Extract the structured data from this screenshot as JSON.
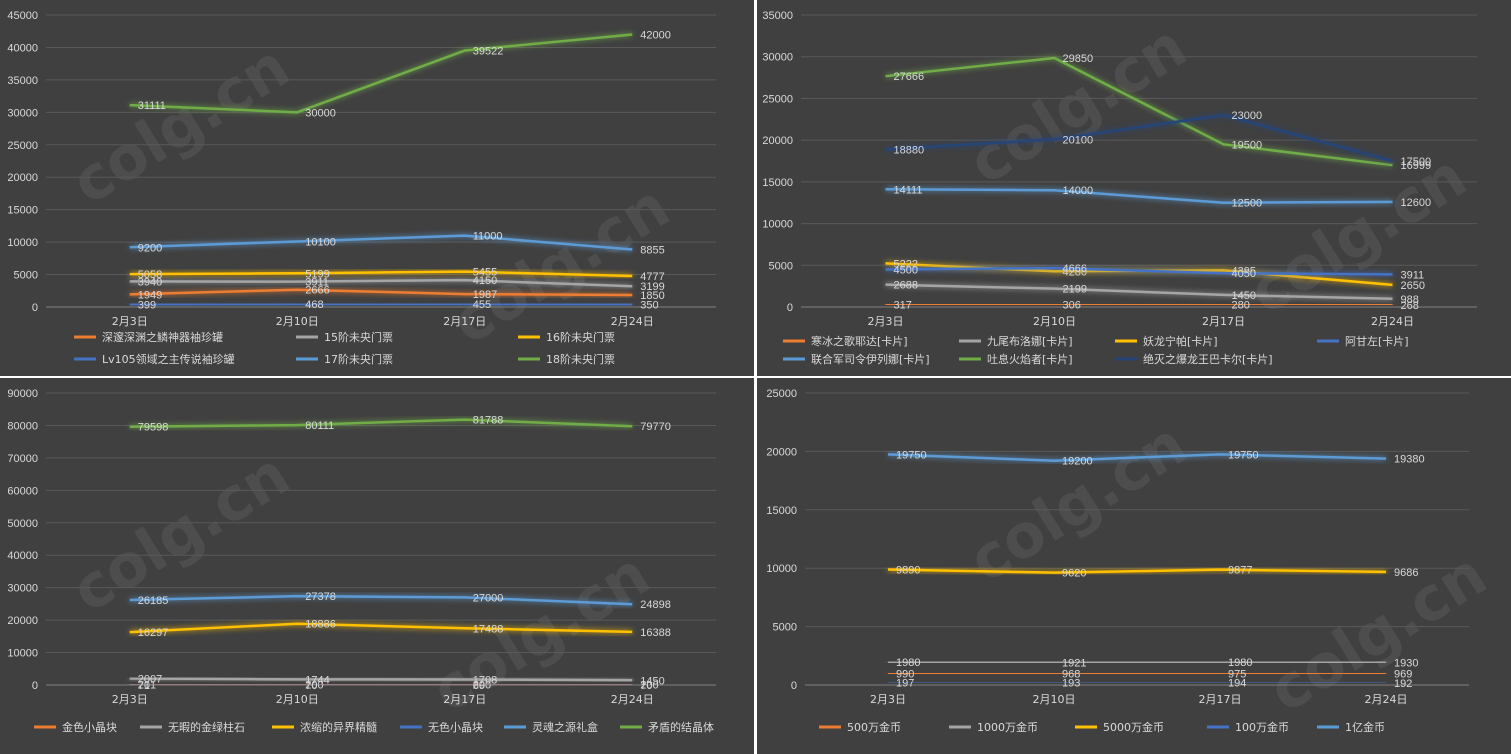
{
  "watermark_text": "colg.cn",
  "colors": {
    "orange": "#ED7D31",
    "gray": "#A5A5A5",
    "gold": "#FFC000",
    "blue": "#4472C4",
    "lightblue": "#5B9BD5",
    "green": "#70AD47",
    "navy": "#264478"
  },
  "chart_data": [
    {
      "type": "line",
      "categories": [
        "2月3日",
        "2月10日",
        "2月17日",
        "2月24日"
      ],
      "ylim": [
        0,
        45000
      ],
      "yticks": [
        0,
        5000,
        10000,
        15000,
        20000,
        25000,
        30000,
        35000,
        40000,
        45000
      ],
      "grid": true,
      "legend_position": "bottom",
      "series": [
        {
          "name": "深邃深渊之鳞神器袖珍罐",
          "color": "orange",
          "values": [
            1949,
            2666,
            1987,
            1850
          ]
        },
        {
          "name": "15阶未央门票",
          "color": "gray",
          "values": [
            3940,
            3911,
            4150,
            3199
          ]
        },
        {
          "name": "16阶未央门票",
          "color": "gold",
          "values": [
            5058,
            5199,
            5455,
            4777
          ]
        },
        {
          "name": "Lv105领域之主传说袖珍罐",
          "color": "blue",
          "values": [
            399,
            468,
            455,
            350
          ]
        },
        {
          "name": "17阶未央门票",
          "color": "lightblue",
          "values": [
            9200,
            10100,
            11000,
            8855
          ]
        },
        {
          "name": "18阶未央门票",
          "color": "green",
          "values": [
            31111,
            30000,
            39522,
            42000
          ]
        }
      ]
    },
    {
      "type": "line",
      "categories": [
        "2月3日",
        "2月10日",
        "2月17日",
        "2月24日"
      ],
      "ylim": [
        0,
        35000
      ],
      "yticks": [
        0,
        5000,
        10000,
        15000,
        20000,
        25000,
        30000,
        35000
      ],
      "grid": true,
      "legend_position": "bottom",
      "series": [
        {
          "name": "寒冰之歌耶达[卡片]",
          "color": "orange",
          "values": [
            317,
            306,
            280,
            268
          ]
        },
        {
          "name": "九尾布洛娜[卡片]",
          "color": "gray",
          "values": [
            2688,
            2199,
            1450,
            988
          ]
        },
        {
          "name": "妖龙宁帕[卡片]",
          "color": "gold",
          "values": [
            5222,
            4280,
            4395,
            2650
          ]
        },
        {
          "name": "阿甘左[卡片]",
          "color": "blue",
          "values": [
            4500,
            4666,
            4050,
            3911
          ]
        },
        {
          "name": "联合军司令伊列娜[卡片]",
          "color": "lightblue",
          "values": [
            14111,
            14000,
            12500,
            12600
          ]
        },
        {
          "name": "吐息火焰者[卡片]",
          "color": "green",
          "values": [
            27666,
            29850,
            19500,
            16999
          ]
        },
        {
          "name": "绝灭之爆龙王巴卡尔[卡片]",
          "color": "navy",
          "values": [
            18880,
            20100,
            23000,
            17500
          ]
        }
      ]
    },
    {
      "type": "line",
      "categories": [
        "2月3日",
        "2月10日",
        "2月17日",
        "2月24日"
      ],
      "ylim": [
        0,
        90000
      ],
      "yticks": [
        0,
        10000,
        20000,
        30000,
        40000,
        50000,
        60000,
        70000,
        80000,
        90000
      ],
      "grid": true,
      "legend_position": "bottom",
      "series": [
        {
          "name": "金色小晶块",
          "color": "orange",
          "values": [
            201,
            200,
            200,
            200
          ]
        },
        {
          "name": "无暇的金绿柱石",
          "color": "gray",
          "values": [
            2007,
            1744,
            1708,
            1450
          ]
        },
        {
          "name": "浓缩的异界精髓",
          "color": "gold",
          "values": [
            16297,
            18886,
            17488,
            16388
          ]
        },
        {
          "name": "无色小晶块",
          "color": "blue",
          "values": [
            71,
            70,
            69,
            70
          ]
        },
        {
          "name": "灵魂之源礼盒",
          "color": "lightblue",
          "values": [
            26185,
            27378,
            27000,
            24898
          ]
        },
        {
          "name": "矛盾的结晶体",
          "color": "green",
          "values": [
            79598,
            80111,
            81788,
            79770
          ]
        }
      ]
    },
    {
      "type": "line",
      "categories": [
        "2月3日",
        "2月10日",
        "2月17日",
        "2月24日"
      ],
      "ylim": [
        0,
        25000
      ],
      "yticks": [
        0,
        5000,
        10000,
        15000,
        20000,
        25000
      ],
      "grid": true,
      "legend_position": "bottom",
      "series": [
        {
          "name": "500万金币",
          "color": "orange",
          "values": [
            990,
            968,
            975,
            969
          ]
        },
        {
          "name": "1000万金币",
          "color": "gray",
          "values": [
            1980,
            1921,
            1980,
            1930
          ]
        },
        {
          "name": "5000万金币",
          "color": "gold",
          "values": [
            9890,
            9620,
            9877,
            9686
          ]
        },
        {
          "name": "100万金币",
          "color": "blue",
          "values": [
            197,
            193,
            194,
            192
          ]
        },
        {
          "name": "1亿金币",
          "color": "lightblue",
          "values": [
            19750,
            19200,
            19750,
            19380
          ]
        }
      ]
    }
  ]
}
